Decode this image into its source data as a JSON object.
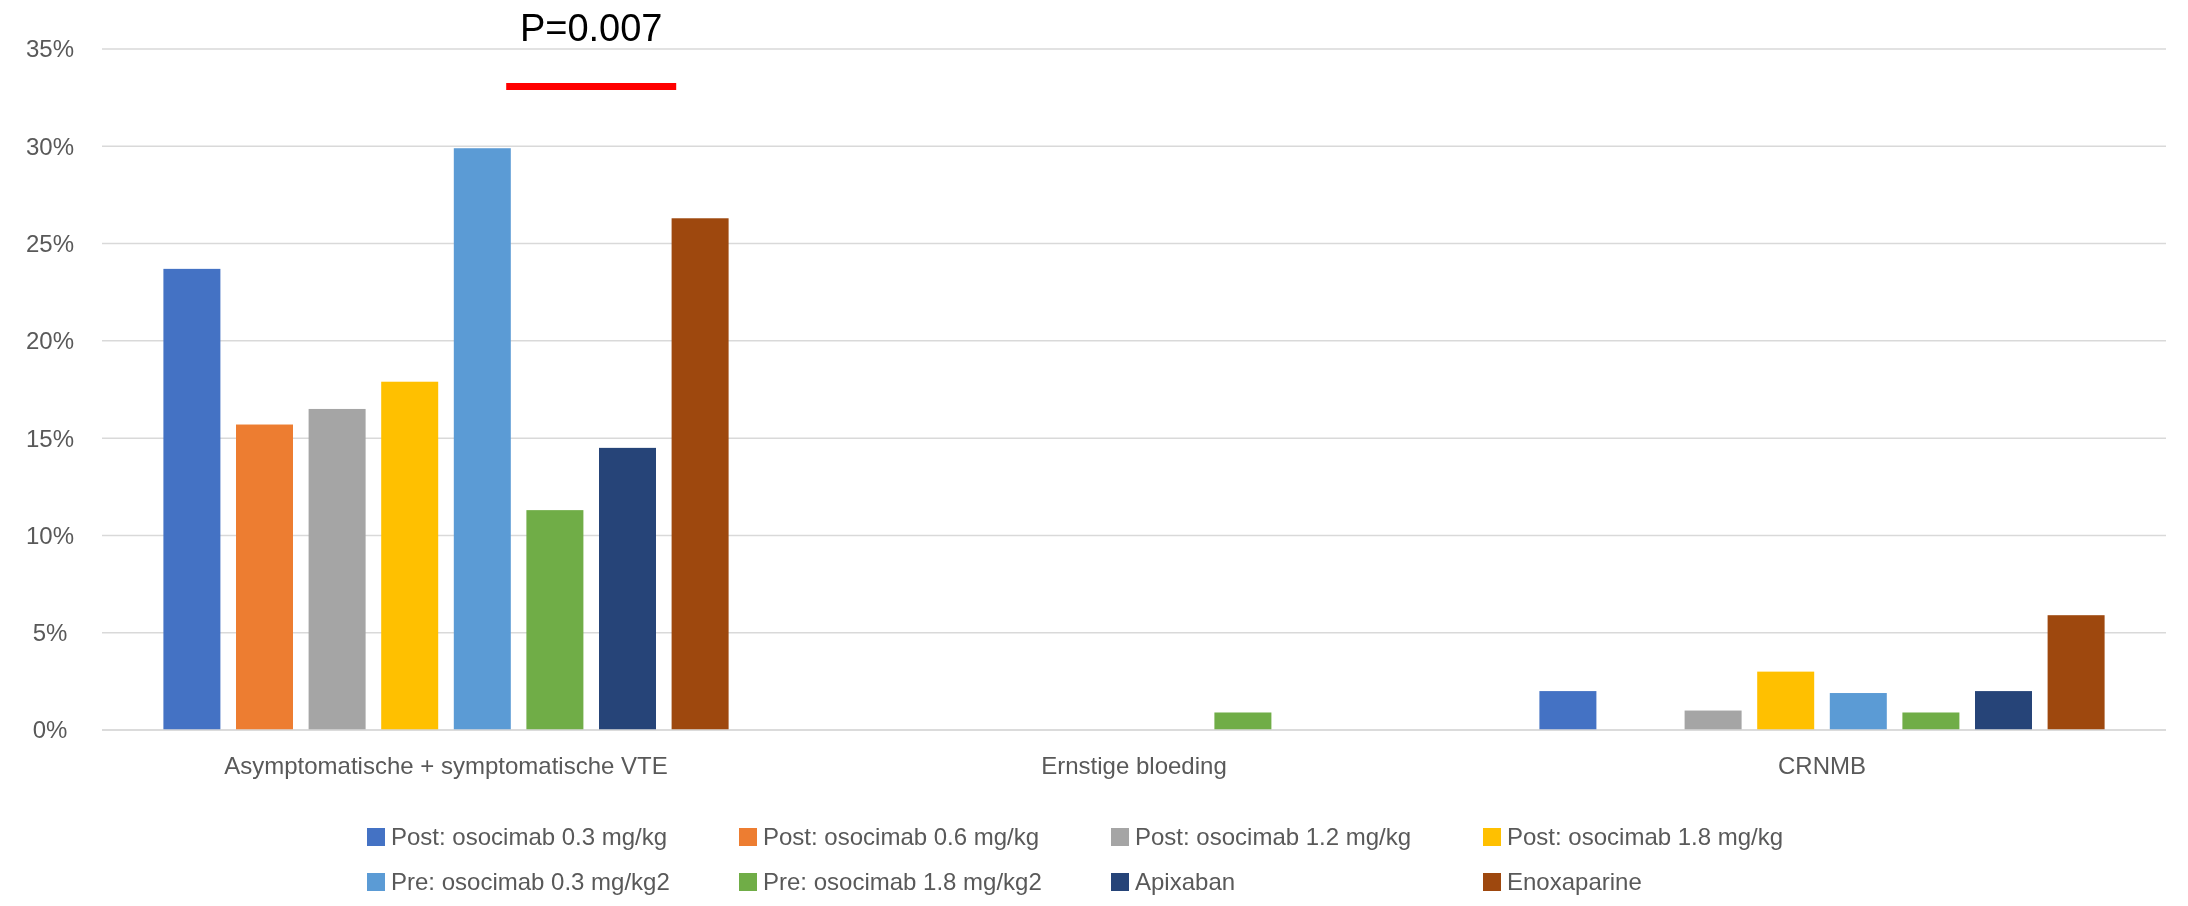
{
  "chart_data": {
    "type": "bar",
    "categories": [
      "Asymptomatische + symptomatische VTE",
      "Ernstige bloeding",
      "CRNMB"
    ],
    "series": [
      {
        "name": "Post: osocimab 0.3 mg/kg",
        "color": "#4472c4",
        "values": [
          23.7,
          0,
          2.0
        ]
      },
      {
        "name": "Post: osocimab 0.6 mg/kg",
        "color": "#ed7d31",
        "values": [
          15.7,
          0,
          0
        ]
      },
      {
        "name": "Post: osocimab 1.2 mg/kg",
        "color": "#a5a5a5",
        "values": [
          16.5,
          0,
          1.0
        ]
      },
      {
        "name": "Post: osocimab 1.8 mg/kg",
        "color": "#ffc000",
        "values": [
          17.9,
          0,
          3.0
        ]
      },
      {
        "name": "Pre: osocimab 0.3 mg/kg2",
        "color": "#5b9bd5",
        "values": [
          29.9,
          0,
          1.9
        ]
      },
      {
        "name": "Pre: osocimab 1.8 mg/kg2",
        "color": "#70ad47",
        "values": [
          11.3,
          0.9,
          0.9
        ]
      },
      {
        "name": "Apixaban",
        "color": "#264478",
        "values": [
          14.5,
          0,
          2.0
        ]
      },
      {
        "name": "Enoxaparine",
        "color": "#9e480e",
        "values": [
          26.3,
          0,
          5.9
        ]
      }
    ],
    "ylim": [
      0,
      35
    ],
    "yticks": [
      {
        "value": 0,
        "label": "0%"
      },
      {
        "value": 5,
        "label": "5%"
      },
      {
        "value": 10,
        "label": "10%"
      },
      {
        "value": 15,
        "label": "15%"
      },
      {
        "value": 20,
        "label": "20%"
      },
      {
        "value": 25,
        "label": "25%"
      },
      {
        "value": 30,
        "label": "30%"
      },
      {
        "value": 35,
        "label": "35%"
      }
    ],
    "grid": "y",
    "legend": "bottom",
    "annotations": [
      "P=0.007"
    ]
  }
}
